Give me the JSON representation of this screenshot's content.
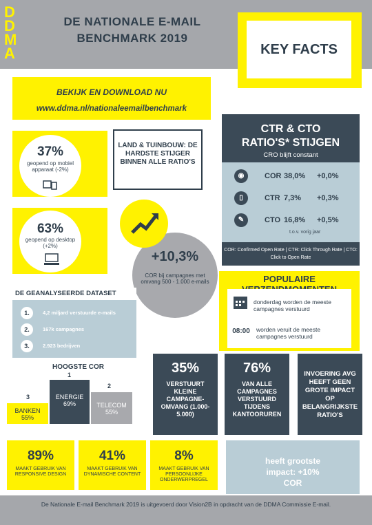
{
  "logo": {
    "letters": [
      "D",
      "D",
      "M",
      "A"
    ]
  },
  "header": {
    "title_line1": "DE NATIONALE E-MAIL",
    "title_line2": "BENCHMARK 2019",
    "key_facts": "KEY FACTS"
  },
  "download": {
    "line1": "BEKIJK EN DOWNLOAD NU",
    "url": "www.ddma.nl/nationaleemailbenchmark"
  },
  "mobile": {
    "pct": "37%",
    "text": "geopend op mobiel apparaat (-2%)"
  },
  "desktop": {
    "pct": "63%",
    "text": "geopend op desktop (+2%)"
  },
  "land": {
    "text": "LAND & TUINBOUW: DE HARDSTE STIJGER BINNEN ALLE RATIO'S"
  },
  "ctr": {
    "title_line1": "CTR & CTO",
    "title_line2": "RATIO'S* STIJGEN",
    "subtitle": "CRO blijft  constant",
    "rows": [
      {
        "label": "COR",
        "value": "38,0%",
        "change": "+0,0%",
        "icon": "eye-icon"
      },
      {
        "label": "CTR",
        "value": "7,3%",
        "change": "+0,3%",
        "icon": "mouse-icon"
      },
      {
        "label": "CTO",
        "value": "16,8%",
        "change": "+0,5%",
        "icon": "click-icon"
      }
    ],
    "tov": "t.o.v. vorig jaar",
    "legend": "COR: Confirmed Open Rate | CTR: Click Through Rate | CTO: Click to Open Rate"
  },
  "growth": {
    "pct": "+10,3%",
    "text": "COR bij campagnes met omvang 500 - 1.000 e-mails",
    "icon": "growth-chart-icon"
  },
  "dataset": {
    "title": "DE GEANALYSEERDE DATASET",
    "items": [
      {
        "num": "1.",
        "text": "4,2 miljard verstuurde e-mails"
      },
      {
        "num": "2.",
        "text": "167k campagnes"
      },
      {
        "num": "3.",
        "text": "2.923 bedrijven"
      }
    ]
  },
  "popular": {
    "title_line1": "POPULAIRE",
    "title_line2": "VERZENDMOMENTEN",
    "day_text": "donderdag worden de meeste campagnes verstuurd",
    "time": "08:00",
    "time_text": "worden  veruit de  meeste campagnes verstuurd"
  },
  "cor": {
    "title": "HOOGSTE COR",
    "bars": [
      {
        "rank": "3",
        "name": "BANKEN",
        "value": "55%"
      },
      {
        "rank": "1",
        "name": "ENERGIE",
        "value": "69%"
      },
      {
        "rank": "2",
        "name": "TELECOM",
        "value": "55%"
      }
    ]
  },
  "cards": [
    {
      "big": "35%",
      "text": "VERSTUURT KLEINE CAMPAGNE-OMVANG (1.000-5.000)"
    },
    {
      "big": "76%",
      "text": "VAN ALLE CAMPAGNES VERSTUURD TIJDENS KANTOORUREN"
    },
    {
      "big": "",
      "text": "INVOERING AVG HEEFT GEEN GROTE IMPACT OP BELANGRIJKSTE RATIO'S"
    }
  ],
  "bottom": [
    {
      "big": "89%",
      "text": "MAAKT GEBRUIK VAN RESPONSIVE DESIGN"
    },
    {
      "big": "41%",
      "text": "MAAKT GEBRUIK VAN DYNAMISCHE CONTENT"
    },
    {
      "big": "8%",
      "text": "MAAKT GEBRUIK VAN PERSOONLIJKE ONDERWERPREGEL"
    }
  ],
  "impact": {
    "line1": "heeft grootste",
    "line2": "impact: +10%",
    "line3": "COR"
  },
  "footer": {
    "text": "De Nationale E-mail Benchmark  2019 is uitgevoerd  door Vision2B  in opdracht van de DDMA Commissie E-mail."
  }
}
